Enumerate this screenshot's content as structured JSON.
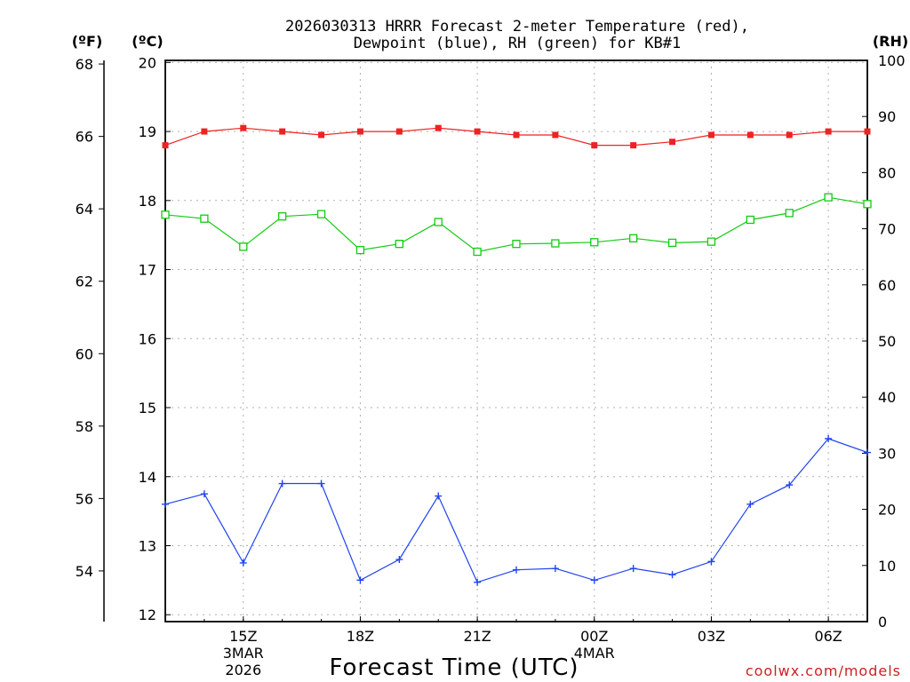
{
  "colors": {
    "temperature": "#ee2222",
    "dewpoint": "#2244ee",
    "rh": "#11cc11",
    "credit": "#cc2222"
  },
  "chart_data": {
    "type": "line",
    "title": "2026030313 HRRR Forecast 2-meter Temperature (red),",
    "subtitle": "Dewpoint (blue), RH (green) for KB#1",
    "xlabel": "Forecast Time (UTC)",
    "credit": "coolwx.com/models",
    "units": {
      "fahrenheit": "(ºF)",
      "celsius": "(ºC)",
      "rh": "(RH)"
    },
    "x_hours": [
      0,
      1,
      2,
      3,
      4,
      5,
      6,
      7,
      8,
      9,
      10,
      11,
      12,
      13,
      14,
      15,
      16,
      17,
      18
    ],
    "xlim": [
      0,
      18
    ],
    "x_ticks": [
      {
        "x": 2,
        "label": "15Z",
        "sub1": "3MAR",
        "sub2": "2026"
      },
      {
        "x": 5,
        "label": "18Z",
        "sub1": "",
        "sub2": ""
      },
      {
        "x": 8,
        "label": "21Z",
        "sub1": "",
        "sub2": ""
      },
      {
        "x": 11,
        "label": "00Z",
        "sub1": "4MAR",
        "sub2": ""
      },
      {
        "x": 14,
        "label": "03Z",
        "sub1": "",
        "sub2": ""
      },
      {
        "x": 17,
        "label": "06Z",
        "sub1": "",
        "sub2": ""
      }
    ],
    "celsius_axis": {
      "range": [
        11.9,
        20.03
      ],
      "ticks": [
        "12",
        "13",
        "14",
        "15",
        "16",
        "17",
        "18",
        "19",
        "20"
      ]
    },
    "fahrenheit_axis": {
      "range": [
        52.6,
        68.1
      ],
      "ticks": [
        "54",
        "56",
        "58",
        "60",
        "62",
        "64",
        "66",
        "68"
      ]
    },
    "rh_axis": {
      "range": [
        0,
        100
      ],
      "ticks": [
        "0",
        "10",
        "20",
        "30",
        "40",
        "50",
        "60",
        "70",
        "80",
        "90",
        "100"
      ]
    },
    "series": [
      {
        "name": "Temperature",
        "unit": "C",
        "color": "#ee2222",
        "marker": "filled-square",
        "values": [
          18.8,
          19.0,
          19.05,
          19.0,
          18.95,
          19.0,
          19.0,
          19.05,
          19.0,
          18.95,
          18.95,
          18.8,
          18.8,
          18.85,
          18.95,
          18.95,
          18.95,
          19.0,
          19.0
        ]
      },
      {
        "name": "Dewpoint",
        "unit": "C",
        "color": "#2244ee",
        "marker": "plus",
        "values": [
          13.6,
          13.75,
          12.75,
          13.9,
          13.9,
          12.5,
          12.8,
          13.72,
          12.47,
          12.65,
          12.67,
          12.5,
          12.67,
          12.58,
          12.77,
          13.6,
          13.88,
          14.55,
          14.35
        ]
      },
      {
        "name": "RH",
        "unit": "%",
        "color": "#11cc11",
        "marker": "open-square",
        "values": [
          72.5,
          71.8,
          66.8,
          72.2,
          72.6,
          66.2,
          67.3,
          71.2,
          65.9,
          67.3,
          67.4,
          67.6,
          68.3,
          67.5,
          67.7,
          71.6,
          72.8,
          75.6,
          74.4
        ]
      }
    ]
  }
}
